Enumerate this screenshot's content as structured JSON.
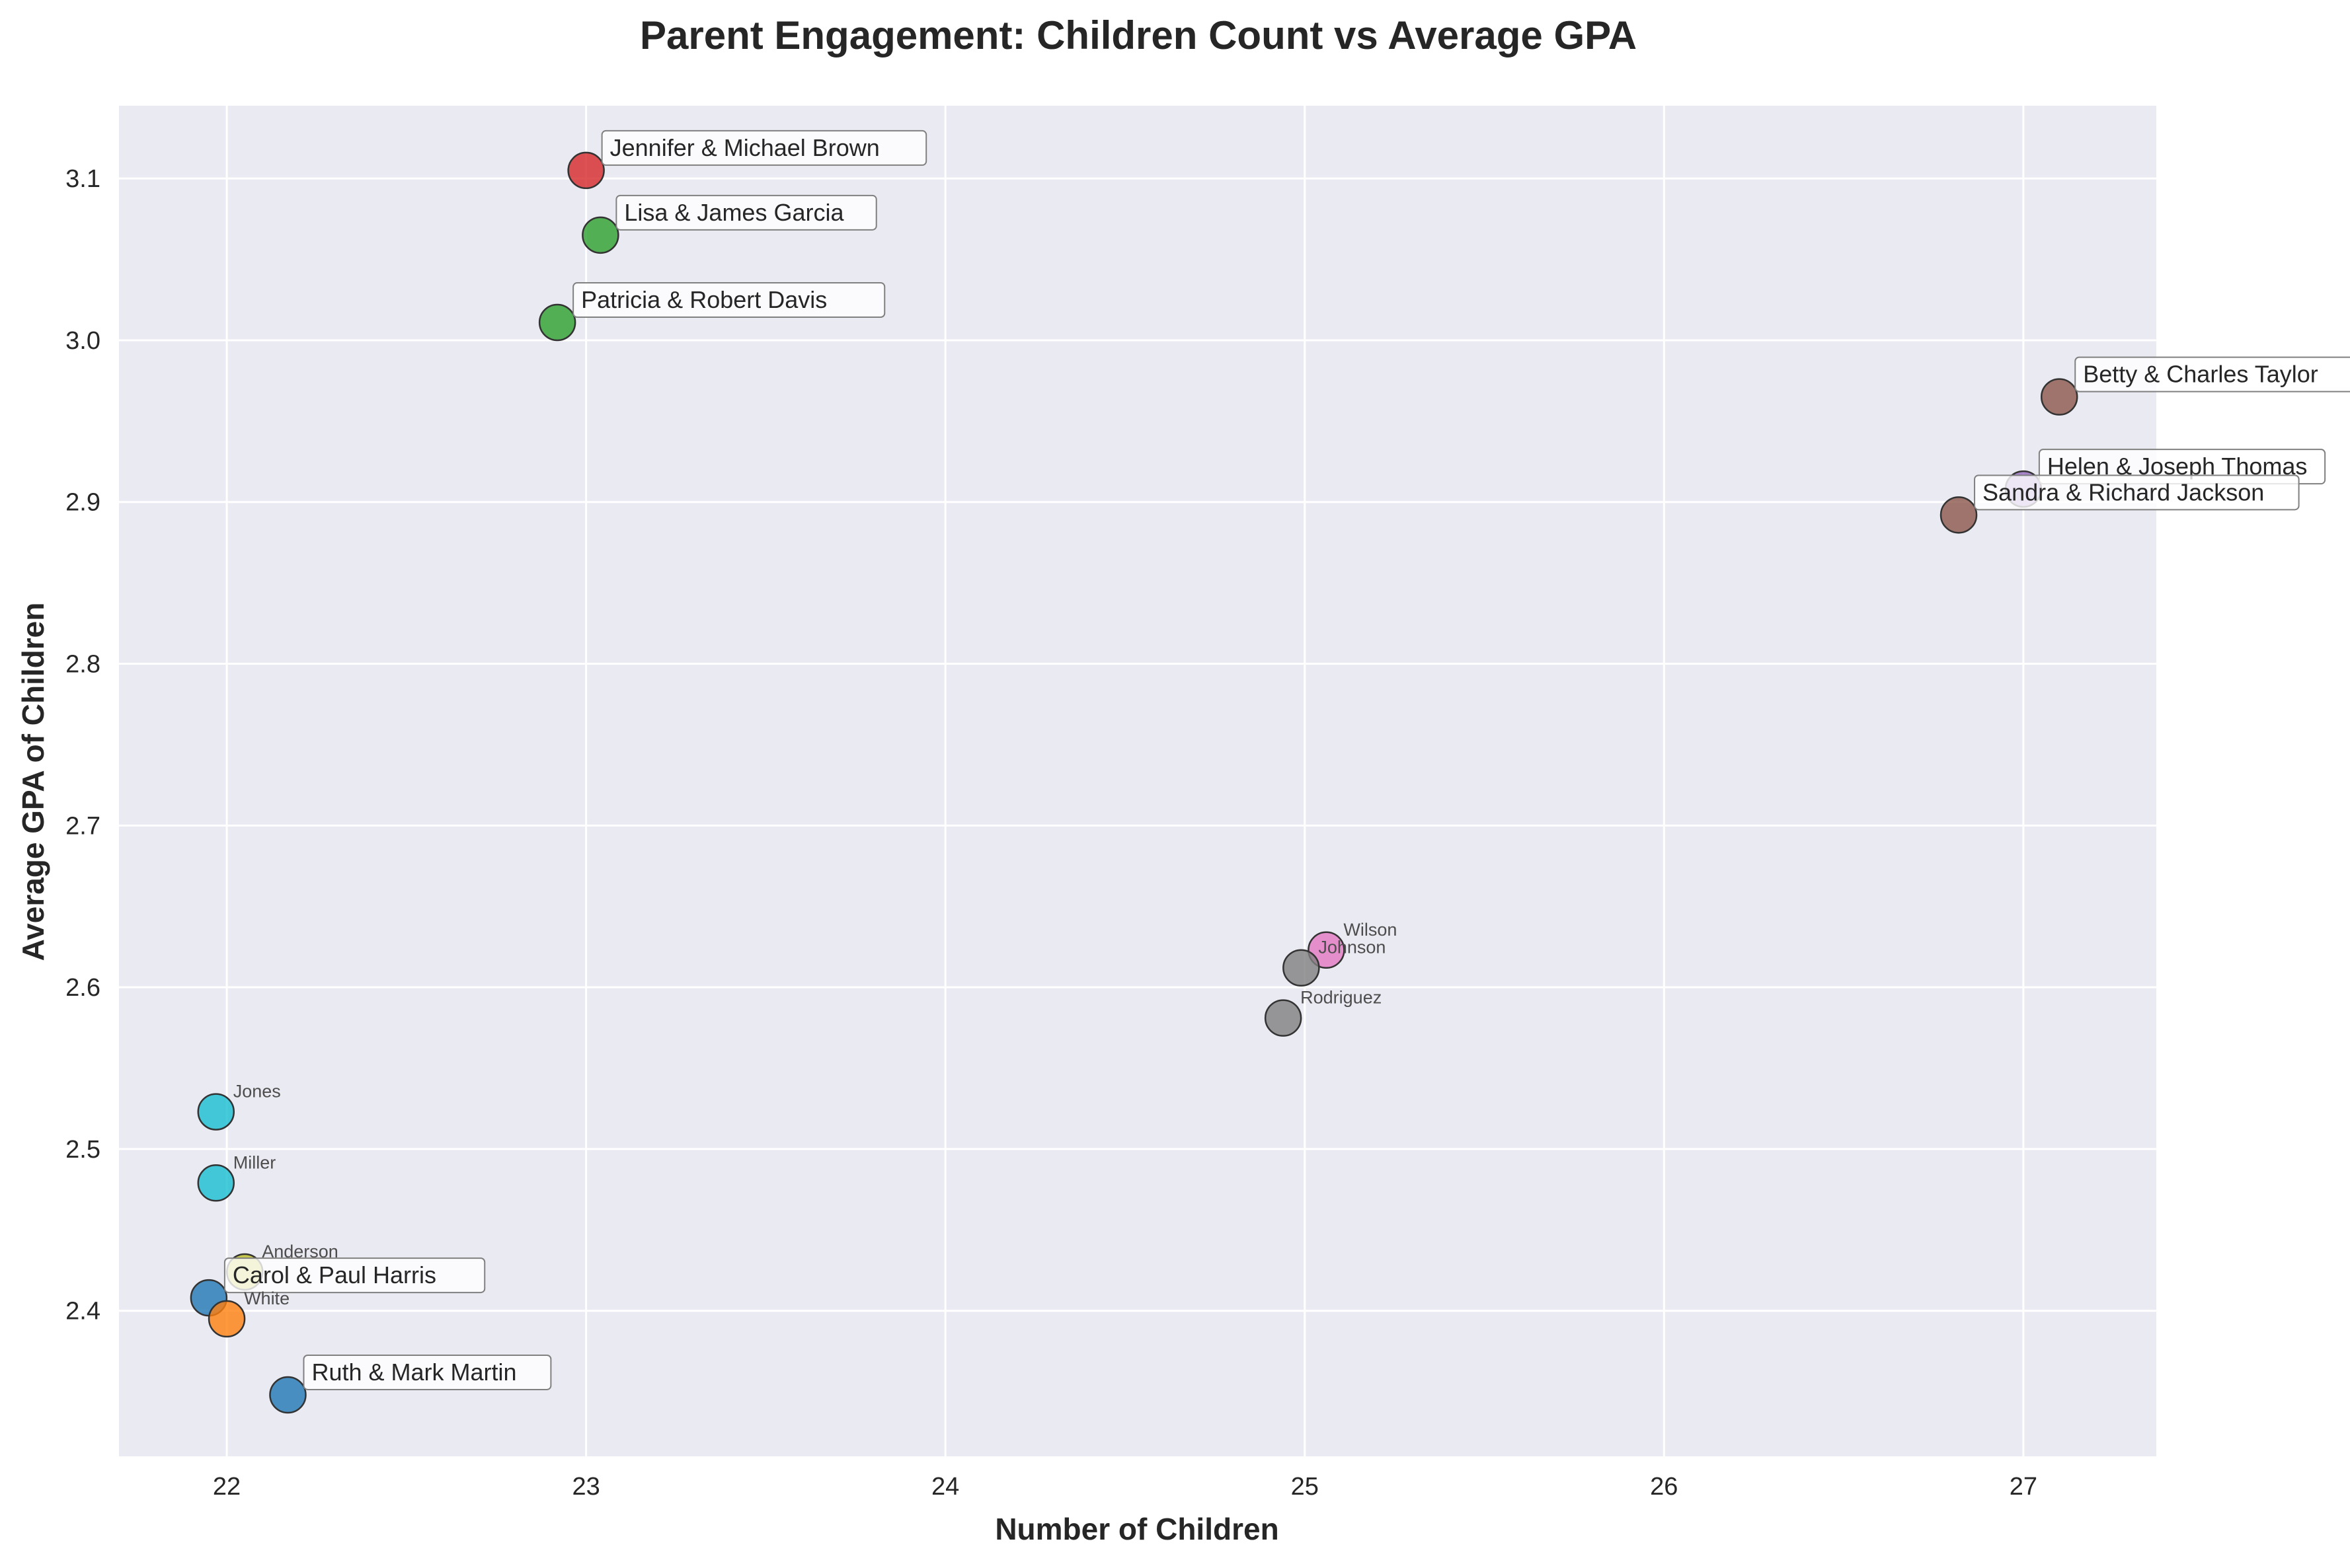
{
  "chart_data": {
    "type": "scatter",
    "title": "Parent Engagement: Children Count vs Average GPA",
    "xlabel": "Number of Children",
    "ylabel": "Average GPA of Children",
    "xlim": [
      21.7,
      27.37
    ],
    "ylim": [
      2.31,
      3.145
    ],
    "xticks": [
      22,
      23,
      24,
      25,
      26,
      27
    ],
    "yticks": [
      2.4,
      2.5,
      2.6,
      2.7,
      2.8,
      2.9,
      3.0,
      3.1
    ],
    "ytick_labels": [
      "2.4",
      "2.5",
      "2.6",
      "2.7",
      "2.8",
      "2.9",
      "3.0",
      "3.1"
    ],
    "grid": true,
    "legend": "none",
    "colors": {
      "plot_background": "#EAEAF2",
      "grid": "#FFFFFF",
      "text": "#262626",
      "small_label": "#4D4D4D",
      "label_box_fill": "#FFFFFF",
      "label_box_edge": "#808080",
      "marker_edge": "#333333"
    },
    "points": [
      {
        "label": "Jennifer & Michael Brown",
        "x": 23.0,
        "y": 3.105,
        "color": "#D62728",
        "boxed": true
      },
      {
        "label": "Lisa & James Garcia",
        "x": 23.04,
        "y": 3.065,
        "color": "#2CA02C",
        "boxed": true
      },
      {
        "label": "Patricia & Robert Davis",
        "x": 22.92,
        "y": 3.011,
        "color": "#2CA02C",
        "boxed": true
      },
      {
        "label": "Betty & Charles Taylor",
        "x": 27.1,
        "y": 2.965,
        "color": "#8C564B",
        "boxed": true
      },
      {
        "label": "Helen & Joseph Thomas",
        "x": 27.0,
        "y": 2.908,
        "color": "#9467BD",
        "boxed": true
      },
      {
        "label": "Sandra & Richard Jackson",
        "x": 26.82,
        "y": 2.892,
        "color": "#8C564B",
        "boxed": true
      },
      {
        "label": "Wilson",
        "x": 25.06,
        "y": 2.623,
        "color": "#E377C2",
        "boxed": false
      },
      {
        "label": "Johnson",
        "x": 24.99,
        "y": 2.612,
        "color": "#7F7F7F",
        "boxed": false
      },
      {
        "label": "Rodriguez",
        "x": 24.94,
        "y": 2.581,
        "color": "#7F7F7F",
        "boxed": false
      },
      {
        "label": "Jones",
        "x": 21.97,
        "y": 2.523,
        "color": "#17BECF",
        "boxed": false
      },
      {
        "label": "Miller",
        "x": 21.97,
        "y": 2.479,
        "color": "#17BECF",
        "boxed": false
      },
      {
        "label": "Anderson",
        "x": 22.05,
        "y": 2.424,
        "color": "#BCBD22",
        "boxed": false
      },
      {
        "label": "Carol & Paul Harris",
        "x": 21.95,
        "y": 2.408,
        "color": "#1F77B4",
        "boxed": true
      },
      {
        "label": "White",
        "x": 22.0,
        "y": 2.395,
        "color": "#FF7F0E",
        "boxed": false
      },
      {
        "label": "Ruth & Mark Martin",
        "x": 22.17,
        "y": 2.348,
        "color": "#1F77B4",
        "boxed": true
      }
    ]
  }
}
